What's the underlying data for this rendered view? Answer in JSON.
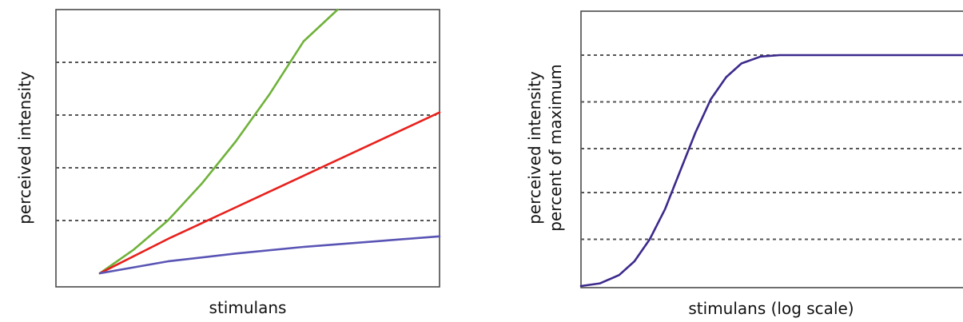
{
  "chart_data": [
    {
      "type": "line",
      "title": "",
      "xlabel": "stimulans",
      "ylabel": "perceived intensity",
      "xlim": [
        0,
        100
      ],
      "ylim": [
        0,
        100
      ],
      "grid": true,
      "gridlines_y": [
        20,
        40,
        60,
        80
      ],
      "series": [
        {
          "color": "#6fb23a",
          "x": [
            0,
            10,
            20,
            30,
            40,
            50,
            60,
            70
          ],
          "y": [
            0,
            9,
            20,
            34,
            50,
            68,
            88,
            100
          ]
        },
        {
          "color": "#e8201c",
          "x": [
            0,
            20,
            40,
            60,
            80,
            100
          ],
          "y": [
            0,
            13,
            25,
            37,
            49,
            61
          ]
        },
        {
          "color": "#5a55b5",
          "x": [
            0,
            20,
            40,
            60,
            80,
            100
          ],
          "y": [
            0,
            4.5,
            7.5,
            10,
            12,
            14
          ]
        }
      ]
    },
    {
      "type": "line",
      "title": "",
      "xlabel": "stimulans (log scale)",
      "ylabel": [
        "perceived intensity",
        "percent of maximum"
      ],
      "xscale": "log",
      "xlim": [
        0,
        100
      ],
      "ylim": [
        0,
        100
      ],
      "grid": true,
      "gridlines_y": [
        17,
        34,
        50,
        67,
        84
      ],
      "series": [
        {
          "color": "#3d2a8c",
          "x": [
            0,
            5,
            10,
            14,
            18,
            22,
            26,
            30,
            34,
            38,
            42,
            47,
            52,
            57,
            62,
            68,
            75,
            80,
            90,
            100
          ],
          "y": [
            0,
            1,
            4,
            9,
            17,
            28,
            42,
            56,
            68,
            76,
            81,
            83.5,
            84,
            84,
            84,
            84,
            84,
            84,
            84,
            84
          ]
        }
      ]
    }
  ]
}
